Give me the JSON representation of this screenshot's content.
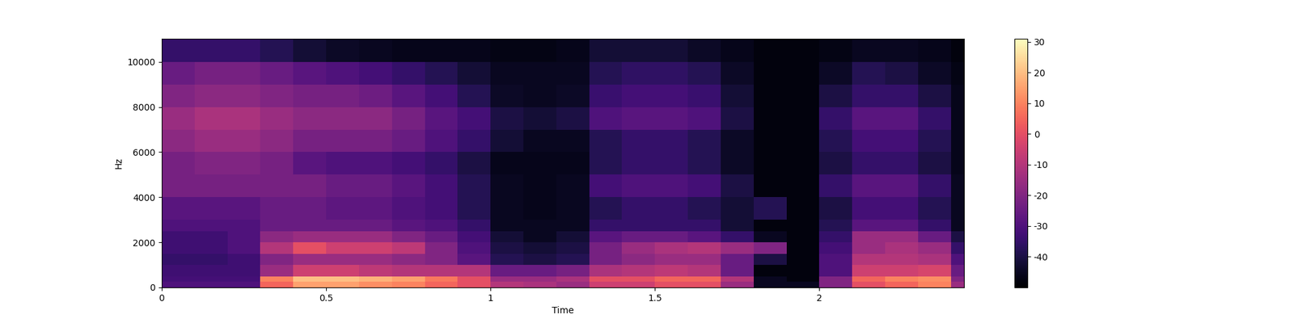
{
  "chart_data": {
    "type": "heatmap",
    "x_label": "Time",
    "y_label": "Hz",
    "x_edges": [
      0,
      0.1,
      0.2,
      0.3,
      0.4,
      0.5,
      0.6,
      0.7,
      0.8,
      0.9,
      1.0,
      1.1,
      1.2,
      1.3,
      1.4,
      1.5,
      1.6,
      1.7,
      1.8,
      1.9,
      2.0,
      2.1,
      2.2,
      2.3,
      2.4,
      2.44
    ],
    "y_edges": [
      0,
      250,
      500,
      1000,
      1500,
      2000,
      2500,
      3000,
      4000,
      5000,
      6000,
      7000,
      8000,
      9000,
      10000,
      11025
    ],
    "cells": [
      [
        -30,
        -30,
        -30,
        5,
        15,
        15,
        12,
        10,
        5,
        0,
        -10,
        -12,
        -15,
        -5,
        -5,
        0,
        0,
        -15,
        -45,
        -45,
        -20,
        0,
        5,
        10,
        -15
      ],
      [
        -32,
        -32,
        -32,
        10,
        20,
        20,
        18,
        15,
        8,
        0,
        -15,
        -15,
        -12,
        0,
        0,
        5,
        5,
        -10,
        -45,
        -48,
        -20,
        5,
        10,
        12,
        -20
      ],
      [
        -33,
        -33,
        -33,
        -15,
        -5,
        -5,
        -8,
        -10,
        -10,
        -10,
        -25,
        -25,
        -22,
        -12,
        -10,
        -8,
        -10,
        -25,
        -48,
        -48,
        -30,
        -5,
        -5,
        -3,
        -25
      ],
      [
        -35,
        -35,
        -33,
        -20,
        -15,
        -15,
        -15,
        -18,
        -20,
        -28,
        -38,
        -40,
        -38,
        -22,
        -18,
        -15,
        -15,
        -25,
        -40,
        -48,
        -30,
        -10,
        -10,
        -12,
        -30
      ],
      [
        -33,
        -33,
        -30,
        -10,
        0,
        -5,
        -5,
        -8,
        -20,
        -30,
        -40,
        -42,
        -40,
        -22,
        -15,
        -12,
        -10,
        -15,
        -20,
        -48,
        -32,
        -15,
        -12,
        -15,
        -35
      ],
      [
        -33,
        -33,
        -30,
        -18,
        -15,
        -15,
        -15,
        -20,
        -25,
        -32,
        -42,
        -45,
        -42,
        -28,
        -25,
        -25,
        -28,
        -35,
        -45,
        -48,
        -35,
        -15,
        -15,
        -25,
        -40
      ],
      [
        -30,
        -30,
        -30,
        -25,
        -25,
        -25,
        -25,
        -28,
        -30,
        -35,
        -45,
        -45,
        -45,
        -35,
        -35,
        -35,
        -35,
        -42,
        -48,
        -48,
        -38,
        -28,
        -28,
        -35,
        -45
      ],
      [
        -28,
        -28,
        -28,
        -25,
        -25,
        -27,
        -27,
        -30,
        -32,
        -38,
        -45,
        -46,
        -45,
        -38,
        -35,
        -35,
        -38,
        -42,
        -38,
        -48,
        -40,
        -32,
        -32,
        -38,
        -45
      ],
      [
        -22,
        -22,
        -22,
        -22,
        -22,
        -25,
        -25,
        -28,
        -32,
        -38,
        -45,
        -46,
        -45,
        -32,
        -30,
        -30,
        -32,
        -40,
        -48,
        -48,
        -35,
        -28,
        -28,
        -35,
        -45
      ],
      [
        -22,
        -20,
        -20,
        -22,
        -28,
        -30,
        -30,
        -32,
        -35,
        -40,
        -46,
        -46,
        -46,
        -38,
        -35,
        -35,
        -38,
        -44,
        -48,
        -48,
        -40,
        -35,
        -35,
        -40,
        -46
      ],
      [
        -18,
        -15,
        -15,
        -18,
        -22,
        -22,
        -22,
        -25,
        -30,
        -35,
        -42,
        -45,
        -45,
        -38,
        -35,
        -35,
        -38,
        -44,
        -48,
        -48,
        -38,
        -32,
        -32,
        -38,
        -46
      ],
      [
        -15,
        -12,
        -12,
        -15,
        -18,
        -18,
        -18,
        -22,
        -28,
        -32,
        -40,
        -42,
        -40,
        -30,
        -28,
        -28,
        -30,
        -40,
        -48,
        -48,
        -35,
        -28,
        -28,
        -35,
        -46
      ],
      [
        -20,
        -18,
        -18,
        -20,
        -22,
        -22,
        -24,
        -28,
        -32,
        -38,
        -44,
        -45,
        -44,
        -34,
        -32,
        -32,
        -34,
        -42,
        -48,
        -48,
        -40,
        -35,
        -35,
        -40,
        -46
      ],
      [
        -25,
        -22,
        -22,
        -25,
        -28,
        -30,
        -32,
        -35,
        -38,
        -42,
        -45,
        -45,
        -45,
        -38,
        -36,
        -36,
        -38,
        -44,
        -48,
        -48,
        -44,
        -38,
        -40,
        -44,
        -47
      ],
      [
        -35,
        -35,
        -35,
        -38,
        -42,
        -44,
        -45,
        -46,
        -46,
        -46,
        -47,
        -47,
        -46,
        -42,
        -42,
        -42,
        -44,
        -46,
        -48,
        -48,
        -47,
        -45,
        -45,
        -46,
        -48
      ]
    ],
    "xlim": [
      0,
      2.44
    ],
    "xticks": [
      0,
      0.5,
      1,
      1.5,
      2
    ],
    "ylim": [
      0,
      11025
    ],
    "yticks": [
      0,
      2000,
      4000,
      6000,
      8000,
      10000
    ],
    "colorbar_range": [
      -50,
      31
    ],
    "colorbar_ticks": [
      -40,
      -30,
      -20,
      -10,
      0,
      10,
      20,
      30
    ]
  }
}
